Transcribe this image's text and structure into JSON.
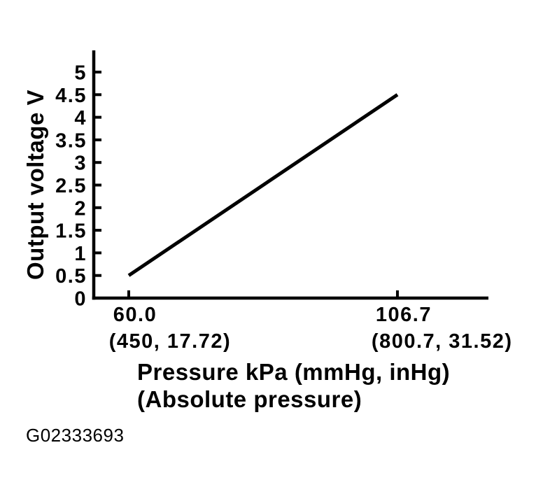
{
  "figure_id": "G02333693",
  "colors": {
    "ink": "#000000",
    "background": "#ffffff"
  },
  "chart_data": {
    "type": "line",
    "ylabel": "Output voltage V",
    "xlabel_lines": [
      "Pressure kPa (mmHg, inHg)",
      "(Absolute pressure)"
    ],
    "yticks": {
      "values": [
        0,
        0.5,
        1,
        1.5,
        2,
        2.5,
        3,
        3.5,
        4,
        4.5,
        5
      ],
      "labels": [
        "0",
        "0.5",
        "1",
        "1.5",
        "2",
        "2.5",
        "3",
        "3.5",
        "4",
        "4.5",
        "5"
      ]
    },
    "xticks": [
      {
        "value": 60.0,
        "label": "60.0",
        "sublabel": "(450, 17.72)"
      },
      {
        "value": 106.7,
        "label": "106.7",
        "sublabel": "(800.7, 31.52)"
      }
    ],
    "series": [
      {
        "name": "output-voltage-vs-pressure",
        "points": [
          [
            60.0,
            0.5
          ],
          [
            106.7,
            4.5
          ]
        ]
      }
    ],
    "xlim": [
      53.9,
      122.5
    ],
    "ylim": [
      0,
      5.48
    ],
    "grid": false,
    "legend": null
  }
}
